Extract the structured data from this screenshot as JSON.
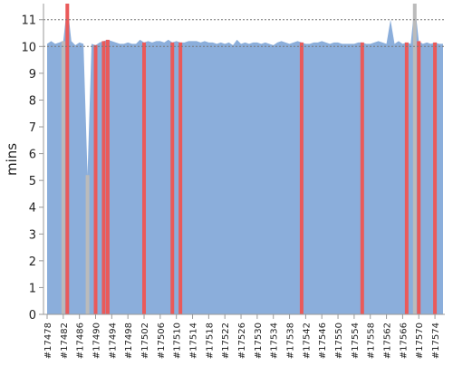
{
  "chart_data": {
    "type": "area",
    "ylabel": "mins",
    "xlabel": "",
    "ylim": [
      0,
      11.6
    ],
    "yticks": [
      0,
      1,
      2,
      3,
      4,
      5,
      6,
      7,
      8,
      9,
      10,
      11
    ],
    "dashed_gridlines": [
      10,
      11
    ],
    "x_builds": [
      "#17478",
      "#17479",
      "#17480",
      "#17481",
      "#17482",
      "#17483",
      "#17484",
      "#17485",
      "#17486",
      "#17487",
      "#17488",
      "#17489",
      "#17490",
      "#17491",
      "#17492",
      "#17493",
      "#17494",
      "#17495",
      "#17496",
      "#17497",
      "#17498",
      "#17499",
      "#17500",
      "#17501",
      "#17502",
      "#17503",
      "#17504",
      "#17505",
      "#17506",
      "#17507",
      "#17508",
      "#17509",
      "#17510",
      "#17511",
      "#17512",
      "#17513",
      "#17514",
      "#17515",
      "#17516",
      "#17517",
      "#17518",
      "#17519",
      "#17520",
      "#17521",
      "#17522",
      "#17523",
      "#17524",
      "#17525",
      "#17526",
      "#17527",
      "#17528",
      "#17529",
      "#17530",
      "#17531",
      "#17532",
      "#17533",
      "#17534",
      "#17535",
      "#17536",
      "#17537",
      "#17538",
      "#17539",
      "#17540",
      "#17541",
      "#17542",
      "#17543",
      "#17544",
      "#17545",
      "#17546",
      "#17547",
      "#17548",
      "#17549",
      "#17550",
      "#17551",
      "#17552",
      "#17553",
      "#17554",
      "#17555",
      "#17556",
      "#17557",
      "#17558",
      "#17559",
      "#17560",
      "#17561",
      "#17562",
      "#17563",
      "#17564",
      "#17565",
      "#17566",
      "#17567",
      "#17568",
      "#17569",
      "#17570",
      "#17571",
      "#17572",
      "#17573",
      "#17574",
      "#17575",
      "#17576"
    ],
    "x_tick_labels": [
      "#17478",
      "#17482",
      "#17486",
      "#17490",
      "#17494",
      "#17498",
      "#17502",
      "#17506",
      "#17510",
      "#17514",
      "#17518",
      "#17522",
      "#17526",
      "#17530",
      "#17534",
      "#17538",
      "#17542",
      "#17546",
      "#17550",
      "#17554",
      "#17558",
      "#17562",
      "#17566",
      "#17570",
      "#17574"
    ],
    "durations": [
      10.1,
      10.2,
      10.1,
      10.15,
      10.2,
      12,
      10.2,
      10.05,
      10.15,
      10.1,
      5.2,
      10.1,
      10.05,
      10.15,
      10.2,
      10.25,
      10.2,
      10.15,
      10.1,
      10.1,
      10.15,
      10.1,
      10.1,
      10.25,
      10.15,
      10.2,
      10.15,
      10.2,
      10.2,
      10.15,
      10.25,
      10.15,
      10.2,
      10.15,
      10.15,
      10.2,
      10.2,
      10.2,
      10.15,
      10.2,
      10.15,
      10.15,
      10.1,
      10.15,
      10.1,
      10.15,
      10.05,
      10.25,
      10.1,
      10.15,
      10.1,
      10.15,
      10.15,
      10.1,
      10.15,
      10.1,
      10.05,
      10.15,
      10.2,
      10.15,
      10.1,
      10.15,
      10.2,
      10.15,
      10.1,
      10.1,
      10.15,
      10.15,
      10.2,
      10.15,
      10.1,
      10.15,
      10.15,
      10.1,
      10.1,
      10.1,
      10.1,
      10.15,
      10.15,
      10.1,
      10.1,
      10.15,
      10.2,
      10.15,
      10.1,
      11,
      10.1,
      10.2,
      10.1,
      10.15,
      10.1,
      12,
      10.2,
      10.1,
      10.15,
      10.1,
      10.15,
      10.1,
      10.1
    ],
    "series": [
      {
        "status": "success",
        "color": "#8baedb"
      },
      {
        "status": "failed",
        "color": "#ea5a5a",
        "builds": [
          "#17483",
          "#17490",
          "#17492",
          "#17493",
          "#17502",
          "#17509",
          "#17511",
          "#17541",
          "#17556",
          "#17567",
          "#17570",
          "#17574"
        ]
      },
      {
        "status": "aborted",
        "color": "#bbbbbb",
        "builds": [
          "#17482",
          "#17488",
          "#17569"
        ]
      }
    ]
  }
}
